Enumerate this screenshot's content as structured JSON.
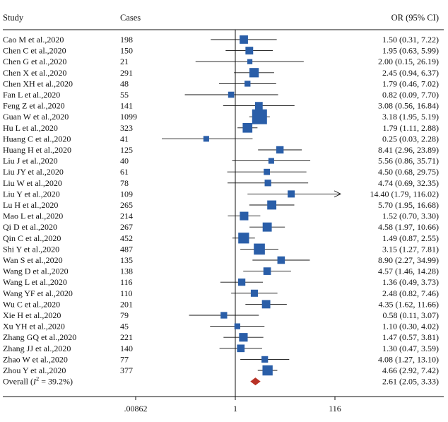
{
  "chart_data": {
    "type": "forest",
    "headers": {
      "study": "Study",
      "cases": "Cases",
      "effect": "OR (95% CI)"
    },
    "x_scale": "log",
    "xlim": [
      0.00862,
      116
    ],
    "x_ticks": [
      {
        "value": 0.00862,
        "label": ".00862"
      },
      {
        "value": 1,
        "label": "1"
      },
      {
        "value": 116,
        "label": "116"
      }
    ],
    "studies": [
      {
        "study": "Cao M et al.,2020",
        "cases": "198",
        "or": 1.5,
        "lo": 0.31,
        "hi": 7.22,
        "ci_text": "1.50 (0.31, 7.22)"
      },
      {
        "study": "Chen C et al.,2020",
        "cases": "150",
        "or": 1.95,
        "lo": 0.63,
        "hi": 5.99,
        "ci_text": "1.95 (0.63, 5.99)"
      },
      {
        "study": "Chen G et al.,2020",
        "cases": "21",
        "or": 2.0,
        "lo": 0.15,
        "hi": 26.19,
        "ci_text": "2.00 (0.15, 26.19)"
      },
      {
        "study": "Chen X et al.,2020",
        "cases": "291",
        "or": 2.45,
        "lo": 0.94,
        "hi": 6.37,
        "ci_text": "2.45 (0.94, 6.37)"
      },
      {
        "study": "Chen XH et al.,2020",
        "cases": "48",
        "or": 1.79,
        "lo": 0.46,
        "hi": 7.02,
        "ci_text": "1.79 (0.46, 7.02)"
      },
      {
        "study": "Fan L et al.,2020",
        "cases": "55",
        "or": 0.82,
        "lo": 0.09,
        "hi": 7.7,
        "ci_text": "0.82 (0.09, 7.70)"
      },
      {
        "study": "Feng Z et al.,2020",
        "cases": "141",
        "or": 3.08,
        "lo": 0.56,
        "hi": 16.84,
        "ci_text": "3.08 (0.56, 16.84)"
      },
      {
        "study": "Guan W et al.,2020",
        "cases": "1099",
        "or": 3.18,
        "lo": 1.95,
        "hi": 5.19,
        "ci_text": "3.18 (1.95, 5.19)"
      },
      {
        "study": "Hu L et al.,2020",
        "cases": "323",
        "or": 1.79,
        "lo": 1.11,
        "hi": 2.88,
        "ci_text": "1.79 (1.11, 2.88)"
      },
      {
        "study": "Huang C et al.,2020",
        "cases": "41",
        "or": 0.25,
        "lo": 0.03,
        "hi": 2.28,
        "ci_text": "0.25 (0.03, 2.28)"
      },
      {
        "study": "Huang H et al.,2020",
        "cases": "125",
        "or": 8.41,
        "lo": 2.96,
        "hi": 23.89,
        "ci_text": "8.41 (2.96, 23.89)"
      },
      {
        "study": "Liu J et al.,2020",
        "cases": "40",
        "or": 5.56,
        "lo": 0.86,
        "hi": 35.71,
        "ci_text": "5.56 (0.86, 35.71)"
      },
      {
        "study": "Liu JY et al.,2020",
        "cases": "61",
        "or": 4.5,
        "lo": 0.68,
        "hi": 29.75,
        "ci_text": "4.50 (0.68, 29.75)"
      },
      {
        "study": "Liu W et al.,2020",
        "cases": "78",
        "or": 4.74,
        "lo": 0.69,
        "hi": 32.35,
        "ci_text": "4.74 (0.69, 32.35)"
      },
      {
        "study": "Liu Y et al.,2020",
        "cases": "109",
        "or": 14.4,
        "lo": 1.79,
        "hi": 116.02,
        "ci_text": "14.40 (1.79, 116.02)"
      },
      {
        "study": "Lu H et al.,2020",
        "cases": "265",
        "or": 5.7,
        "lo": 1.95,
        "hi": 16.68,
        "ci_text": "5.70 (1.95, 16.68)"
      },
      {
        "study": "Mao L et al.,2020",
        "cases": "214",
        "or": 1.52,
        "lo": 0.7,
        "hi": 3.3,
        "ci_text": "1.52 (0.70, 3.30)"
      },
      {
        "study": "Qi D et al.,2020",
        "cases": "267",
        "or": 4.58,
        "lo": 1.97,
        "hi": 10.66,
        "ci_text": "4.58 (1.97, 10.66)"
      },
      {
        "study": "Qin C et al.,2020",
        "cases": "452",
        "or": 1.49,
        "lo": 0.87,
        "hi": 2.55,
        "ci_text": "1.49 (0.87, 2.55)"
      },
      {
        "study": "Shi Y et al.,2020",
        "cases": "487",
        "or": 3.15,
        "lo": 1.27,
        "hi": 7.81,
        "ci_text": "3.15 (1.27, 7.81)"
      },
      {
        "study": "Wan S et al.,2020",
        "cases": "135",
        "or": 8.9,
        "lo": 2.27,
        "hi": 34.99,
        "ci_text": "8.90 (2.27, 34.99)"
      },
      {
        "study": "Wang D et al.,2020",
        "cases": "138",
        "or": 4.57,
        "lo": 1.46,
        "hi": 14.28,
        "ci_text": "4.57 (1.46, 14.28)"
      },
      {
        "study": "Wang L et al.,2020",
        "cases": "116",
        "or": 1.36,
        "lo": 0.49,
        "hi": 3.73,
        "ci_text": "1.36 (0.49, 3.73)"
      },
      {
        "study": "Wang YF et al.,2020",
        "cases": "110",
        "or": 2.48,
        "lo": 0.82,
        "hi": 7.46,
        "ci_text": "2.48 (0.82, 7.46)"
      },
      {
        "study": "Wu C et al.,2020",
        "cases": "201",
        "or": 4.35,
        "lo": 1.62,
        "hi": 11.66,
        "ci_text": "4.35 (1.62, 11.66)"
      },
      {
        "study": "Xie H et al.,2020",
        "cases": "79",
        "or": 0.58,
        "lo": 0.11,
        "hi": 3.07,
        "ci_text": "0.58 (0.11, 3.07)"
      },
      {
        "study": "Xu YH et al.,2020",
        "cases": "45",
        "or": 1.1,
        "lo": 0.3,
        "hi": 4.02,
        "ci_text": "1.10 (0.30, 4.02)"
      },
      {
        "study": "Zhang GQ et al.,2020",
        "cases": "221",
        "or": 1.47,
        "lo": 0.57,
        "hi": 3.81,
        "ci_text": "1.47 (0.57, 3.81)"
      },
      {
        "study": "Zhang JJ et al.,2020",
        "cases": "140",
        "or": 1.3,
        "lo": 0.47,
        "hi": 3.59,
        "ci_text": "1.30 (0.47, 3.59)"
      },
      {
        "study": "Zhao W et al.,2020",
        "cases": "77",
        "or": 4.08,
        "lo": 1.27,
        "hi": 13.1,
        "ci_text": "4.08 (1.27, 13.10)"
      },
      {
        "study": "Zhou Y et al.,2020",
        "cases": "377",
        "or": 4.66,
        "lo": 2.92,
        "hi": 7.42,
        "ci_text": "4.66 (2.92, 7.42)"
      }
    ],
    "overall": {
      "label": "Overall (I² = 39.2%)",
      "label_prefix": "Overall (",
      "label_i": "I",
      "label_sup": "2",
      "label_suffix": " = 39.2%)",
      "or": 2.61,
      "lo": 2.05,
      "hi": 3.33,
      "ci_text": "2.61 (2.05, 3.33)"
    },
    "colors": {
      "marker": "#2a5ea8",
      "overall": "#b83226",
      "lines": "#111111"
    }
  }
}
